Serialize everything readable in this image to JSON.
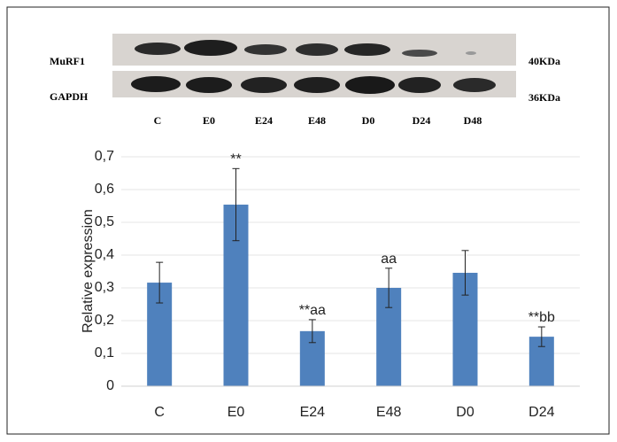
{
  "blot": {
    "rows": [
      {
        "label": "MuRF1",
        "size": "40KDa"
      },
      {
        "label": "GAPDH",
        "size": "36KDa"
      }
    ],
    "lanes": [
      "C",
      "E0",
      "E24",
      "E48",
      "D0",
      "D24",
      "D48"
    ]
  },
  "chart_data": {
    "type": "bar",
    "y_label": "Relative expression",
    "categories": [
      "C",
      "E0",
      "E24",
      "E48",
      "D0",
      "D24"
    ],
    "values": [
      0.316,
      0.554,
      0.168,
      0.3,
      0.346,
      0.151
    ],
    "errors": [
      0.062,
      0.11,
      0.035,
      0.06,
      0.068,
      0.03
    ],
    "annotations": [
      null,
      "**",
      "**aa",
      "aa",
      null,
      "**bb"
    ],
    "color": "#4f81bd",
    "ylim": [
      0,
      0.7
    ],
    "yticks": [
      0,
      {
        "value": 0.1,
        "label": "0,1"
      },
      {
        "value": 0.2,
        "label": "0,2"
      },
      {
        "value": 0.3,
        "label": "0,3"
      },
      {
        "value": 0.4,
        "label": "0,4"
      },
      {
        "value": 0.5,
        "label": "0,5"
      },
      {
        "value": 0.6,
        "label": "0,6"
      },
      {
        "value": 0.7,
        "label": "0,7"
      }
    ],
    "grid": true
  }
}
